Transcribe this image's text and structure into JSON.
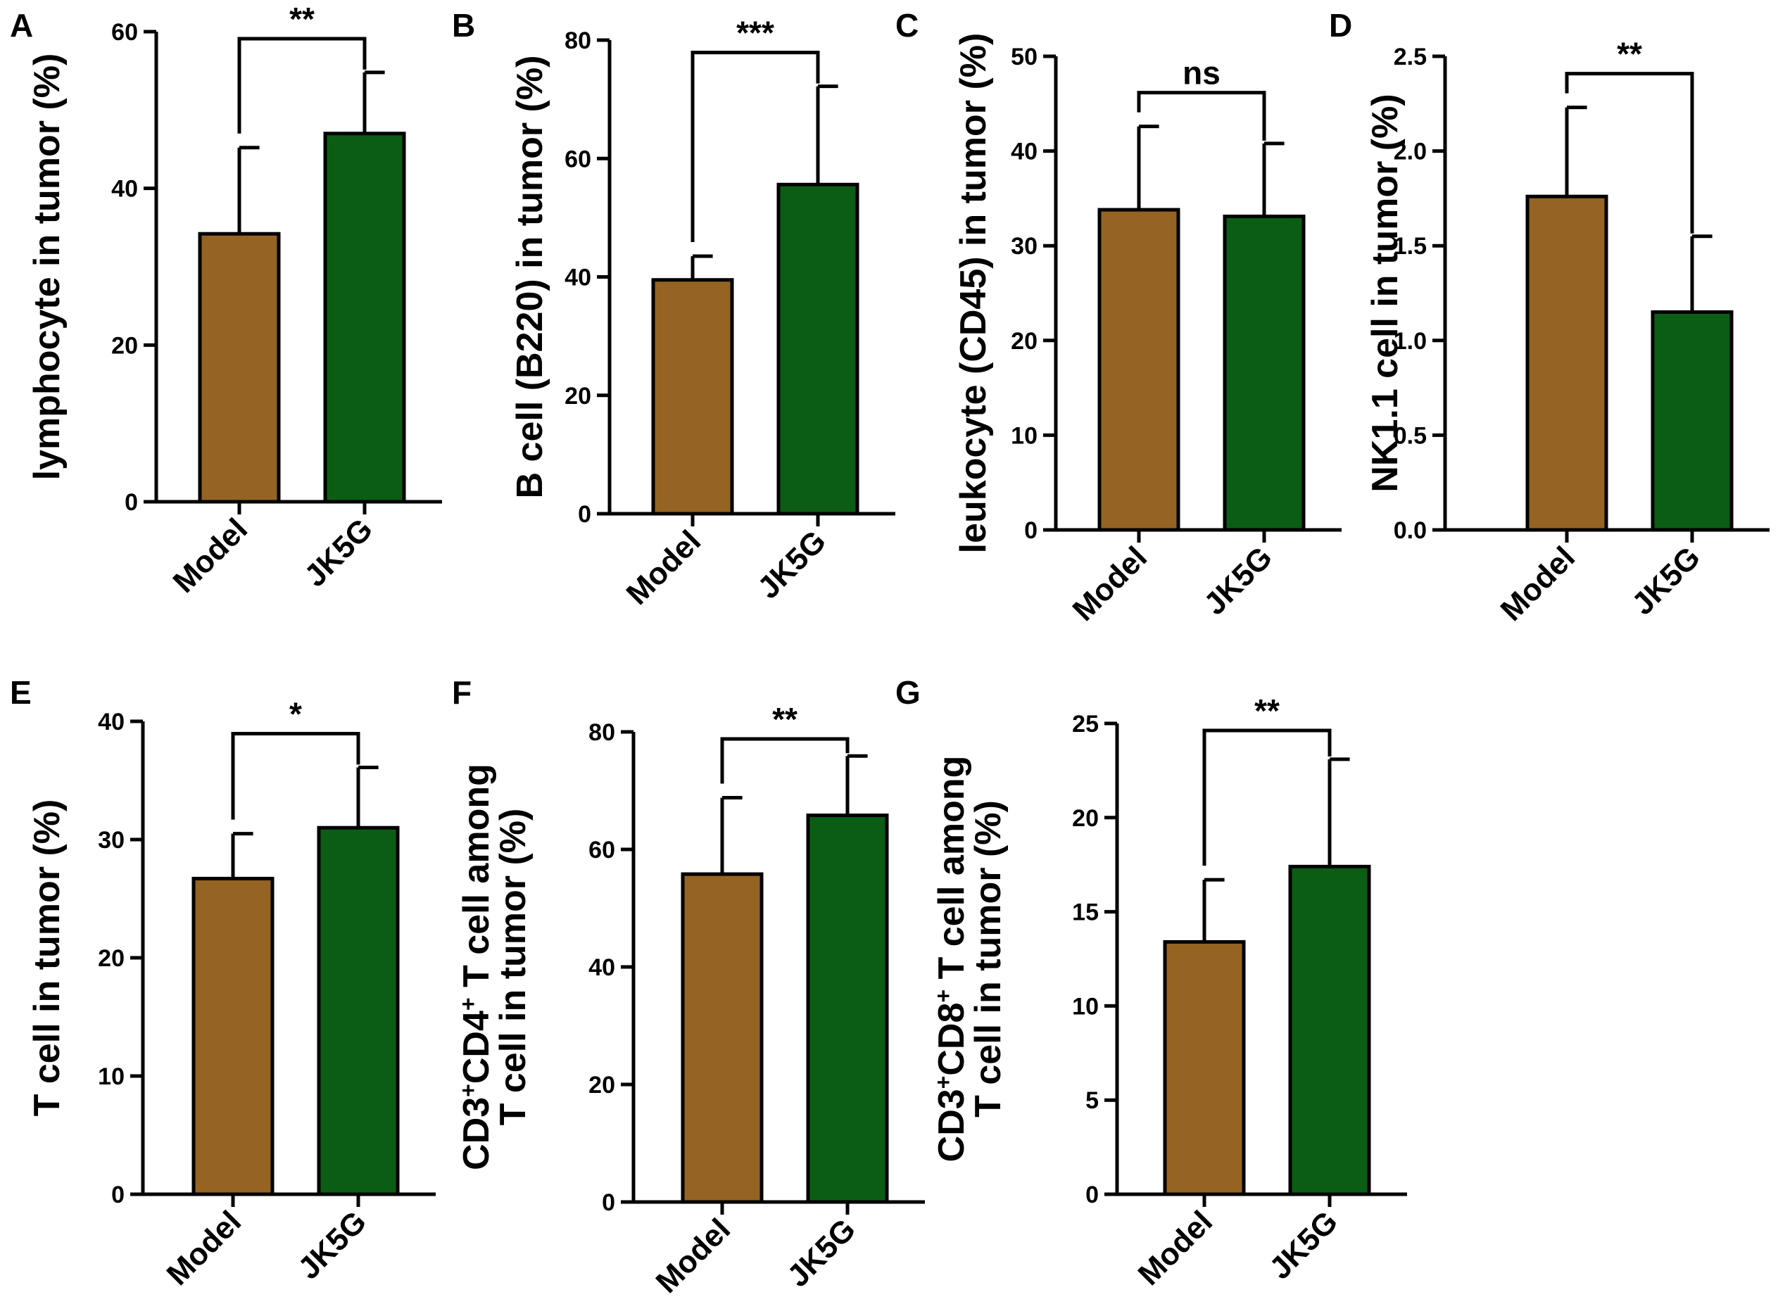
{
  "colors": {
    "model": "#956322",
    "jk5g": "#0c5d14",
    "axis": "#000000"
  },
  "chart_data": [
    {
      "type": "bar",
      "panel": "A",
      "title": "",
      "categories": [
        "Model",
        "JK5G"
      ],
      "values": [
        34.2,
        47.0
      ],
      "errors": [
        11.0,
        7.8
      ],
      "ylabel_lines": [
        "lymphocyte in tumor (%)"
      ],
      "ylim": [
        0,
        60
      ],
      "yticks": [
        "0",
        "20",
        "40",
        "60"
      ],
      "significance": "**"
    },
    {
      "type": "bar",
      "panel": "B",
      "title": "",
      "categories": [
        "Model",
        "JK5G"
      ],
      "values": [
        39.5,
        55.6
      ],
      "errors": [
        4.0,
        16.6
      ],
      "ylabel_lines": [
        "B cell (B220) in tumor  (%)"
      ],
      "ylim": [
        0,
        80
      ],
      "yticks": [
        "0",
        "20",
        "40",
        "60",
        "80"
      ],
      "significance": "***"
    },
    {
      "type": "bar",
      "panel": "C",
      "title": "",
      "categories": [
        "Model",
        "JK5G"
      ],
      "values": [
        33.8,
        33.1
      ],
      "errors": [
        8.8,
        7.7
      ],
      "ylabel_lines": [
        "leukocyte (CD45) in tumor (%)"
      ],
      "ylim": [
        0,
        50
      ],
      "yticks": [
        "0",
        "10",
        "20",
        "30",
        "40",
        "50"
      ],
      "significance": "ns"
    },
    {
      "type": "bar",
      "panel": "D",
      "title": "",
      "categories": [
        "Model",
        "JK5G"
      ],
      "values": [
        1.76,
        1.15
      ],
      "errors": [
        0.47,
        0.4
      ],
      "ylabel_lines": [
        "NK1.1 cell in tumor (%)"
      ],
      "ylim": [
        0,
        2.5
      ],
      "yticks": [
        "0.0",
        "0.5",
        "1.0",
        "1.5",
        "2.0",
        "2.5"
      ],
      "significance": "**"
    },
    {
      "type": "bar",
      "panel": "E",
      "title": "",
      "categories": [
        "Model",
        "JK5G"
      ],
      "values": [
        26.7,
        31.0
      ],
      "errors": [
        3.8,
        5.1
      ],
      "ylabel_lines": [
        "T cell in tumor (%)"
      ],
      "ylim": [
        0,
        40
      ],
      "yticks": [
        "0",
        "10",
        "20",
        "30",
        "40"
      ],
      "significance": "*"
    },
    {
      "type": "bar",
      "panel": "F",
      "title": "",
      "categories": [
        "Model",
        "JK5G"
      ],
      "values": [
        55.8,
        65.8
      ],
      "errors": [
        13.0,
        10.1
      ],
      "ylabel_lines": [
        "CD3+CD4+ T cell among",
        "T cell in tumor (%)"
      ],
      "ylim": [
        0,
        80
      ],
      "yticks": [
        "0",
        "20",
        "40",
        "60",
        "80"
      ],
      "significance": "**"
    },
    {
      "type": "bar",
      "panel": "G",
      "title": "",
      "categories": [
        "Model",
        "JK5G"
      ],
      "values": [
        13.4,
        17.4
      ],
      "errors": [
        3.3,
        5.7
      ],
      "ylabel_lines": [
        "CD3+CD8+ T cell among",
        "T cell in tumor (%)"
      ],
      "ylim": [
        0,
        25
      ],
      "yticks": [
        "0",
        "5",
        "10",
        "15",
        "20",
        "25"
      ],
      "significance": "**"
    }
  ]
}
